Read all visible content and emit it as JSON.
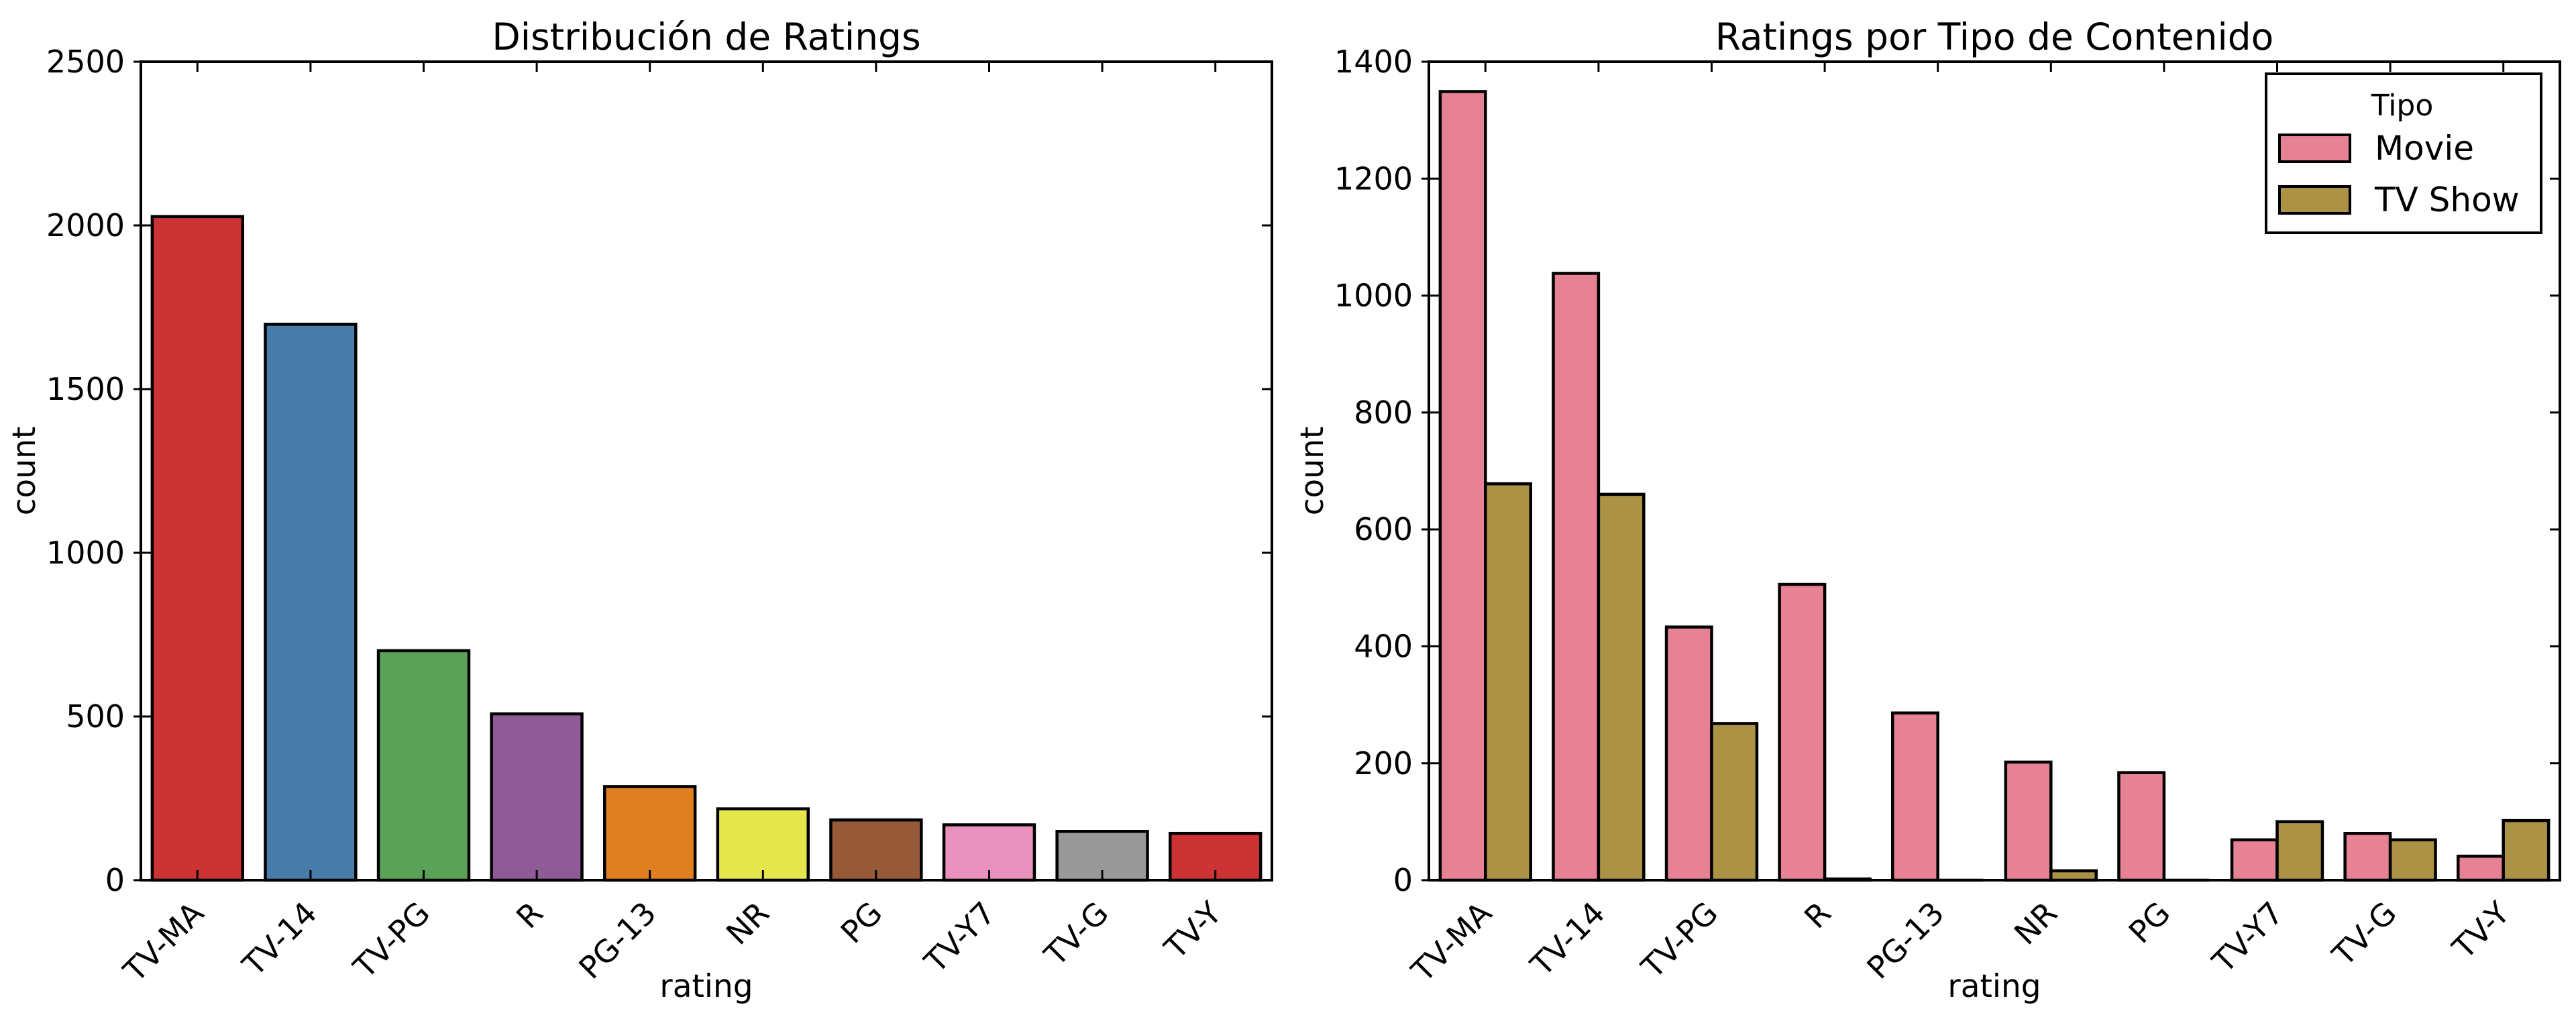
{
  "figure": {
    "background": "#ffffff",
    "axis_color": "#000000",
    "text_color": "#000000"
  },
  "chart_data": [
    {
      "type": "bar",
      "title": "Distribución de Ratings",
      "xlabel": "rating",
      "ylabel": "count",
      "categories": [
        "TV-MA",
        "TV-14",
        "TV-PG",
        "R",
        "PG-13",
        "NR",
        "PG",
        "TV-Y7",
        "TV-G",
        "TV-Y"
      ],
      "values": [
        2027,
        1698,
        701,
        508,
        286,
        218,
        184,
        169,
        149,
        143
      ],
      "bar_colors": [
        "#cb3335",
        "#477ca8",
        "#59a257",
        "#905998",
        "#df7f20",
        "#e5e54c",
        "#965a38",
        "#e890be",
        "#999999",
        "#cb3335"
      ],
      "edge_color": "#000000",
      "ylim": [
        0,
        2500
      ],
      "yticks": [
        0,
        500,
        1000,
        1500,
        2000,
        2500
      ],
      "grid": false,
      "x_tick_rotation": 45
    },
    {
      "type": "bar",
      "title": "Ratings por Tipo de Contenido",
      "xlabel": "rating",
      "ylabel": "count",
      "categories": [
        "TV-MA",
        "TV-14",
        "TV-PG",
        "R",
        "PG-13",
        "NR",
        "PG",
        "TV-Y7",
        "TV-G",
        "TV-Y"
      ],
      "series": [
        {
          "name": "Movie",
          "color": "#e68294",
          "values": [
            1349,
            1038,
            433,
            506,
            286,
            202,
            184,
            69,
            80,
            41
          ]
        },
        {
          "name": "TV Show",
          "color": "#ab9245",
          "values": [
            678,
            660,
            268,
            2,
            0,
            16,
            0,
            100,
            69,
            102
          ]
        }
      ],
      "edge_color": "#000000",
      "ylim": [
        0,
        1400
      ],
      "yticks": [
        0,
        200,
        400,
        600,
        800,
        1000,
        1200,
        1400
      ],
      "grid": false,
      "x_tick_rotation": 45,
      "legend": {
        "title": "Tipo",
        "position": "upper right"
      }
    }
  ]
}
